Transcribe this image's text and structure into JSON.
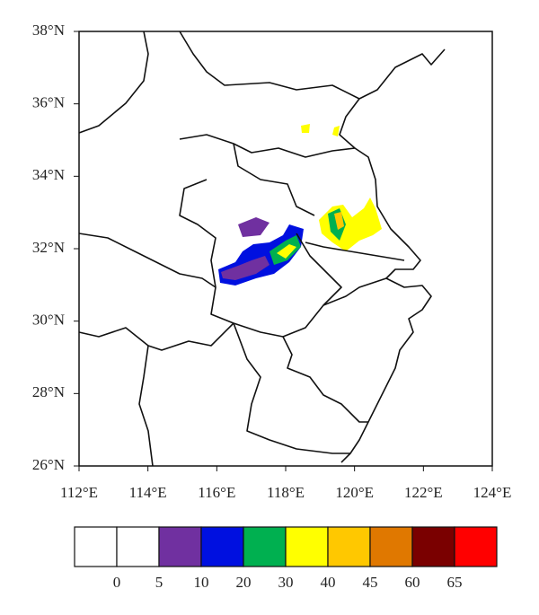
{
  "map": {
    "lon_range": [
      112,
      124
    ],
    "lat_range": [
      26,
      38
    ],
    "lon_ticks": [
      {
        "value": 112,
        "label": "112°E"
      },
      {
        "value": 114,
        "label": "114°E"
      },
      {
        "value": 116,
        "label": "116°E"
      },
      {
        "value": 118,
        "label": "118°E"
      },
      {
        "value": 120,
        "label": "120°E"
      },
      {
        "value": 122,
        "label": "122°E"
      },
      {
        "value": 124,
        "label": "124°E"
      }
    ],
    "lat_ticks": [
      {
        "value": 26,
        "label": "26°N"
      },
      {
        "value": 28,
        "label": "28°N"
      },
      {
        "value": 30,
        "label": "30°N"
      },
      {
        "value": 32,
        "label": "32°N"
      },
      {
        "value": 34,
        "label": "34°N"
      },
      {
        "value": 36,
        "label": "36°N"
      },
      {
        "value": 38,
        "label": "38°N"
      }
    ]
  },
  "colorbar": {
    "colors": [
      "#ffffff",
      "#ffffff",
      "#7030a0",
      "#0010e0",
      "#00b050",
      "#ffff00",
      "#ffc800",
      "#e07800",
      "#7a0000",
      "#ff0000"
    ],
    "labels": [
      0,
      5,
      10,
      20,
      30,
      40,
      45,
      60,
      65
    ]
  }
}
